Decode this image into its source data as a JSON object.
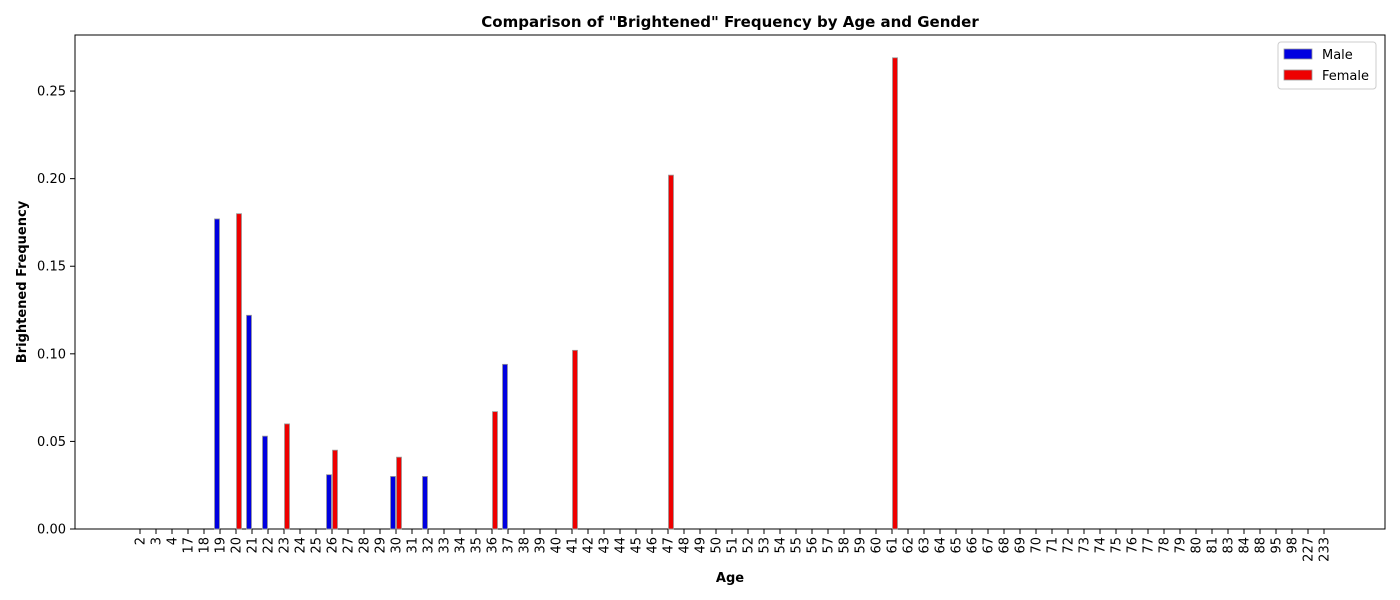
{
  "chart_data": {
    "type": "bar",
    "title": "Comparison of \"Brightened\" Frequency by Age and Gender",
    "xlabel": "Age",
    "ylabel": "Brightened Frequency",
    "ylim": [
      0,
      0.282
    ],
    "yticks": [
      0.0,
      0.05,
      0.1,
      0.15,
      0.2,
      0.25
    ],
    "ytick_labels": [
      "0.00",
      "0.05",
      "0.10",
      "0.15",
      "0.20",
      "0.25"
    ],
    "legend_position": "top-right",
    "categories": [
      "2",
      "3",
      "4",
      "17",
      "18",
      "19",
      "20",
      "21",
      "22",
      "23",
      "24",
      "25",
      "26",
      "27",
      "28",
      "29",
      "30",
      "31",
      "32",
      "33",
      "34",
      "35",
      "36",
      "37",
      "38",
      "39",
      "40",
      "41",
      "42",
      "43",
      "44",
      "45",
      "46",
      "47",
      "48",
      "49",
      "50",
      "51",
      "52",
      "53",
      "54",
      "55",
      "56",
      "57",
      "58",
      "59",
      "60",
      "61",
      "62",
      "63",
      "64",
      "65",
      "66",
      "67",
      "68",
      "69",
      "70",
      "71",
      "72",
      "73",
      "74",
      "75",
      "76",
      "77",
      "78",
      "79",
      "80",
      "81",
      "83",
      "84",
      "88",
      "95",
      "98",
      "227",
      "233"
    ],
    "series": [
      {
        "name": "Male",
        "color": "#0000e0",
        "values": [
          0,
          0,
          0,
          0,
          0,
          0.177,
          0,
          0.122,
          0.053,
          0,
          0,
          0,
          0.031,
          0,
          0,
          0,
          0.03,
          0,
          0.03,
          0,
          0,
          0,
          0,
          0.094,
          0,
          0,
          0,
          0,
          0,
          0,
          0,
          0,
          0,
          0,
          0,
          0,
          0,
          0,
          0,
          0,
          0,
          0,
          0,
          0,
          0,
          0,
          0,
          0,
          0,
          0,
          0,
          0,
          0,
          0,
          0,
          0,
          0,
          0,
          0,
          0,
          0,
          0,
          0,
          0,
          0,
          0,
          0,
          0,
          0,
          0,
          0,
          0,
          0,
          0,
          0
        ]
      },
      {
        "name": "Female",
        "color": "#ee0000",
        "values": [
          0,
          0,
          0,
          0,
          0,
          0,
          0.18,
          0,
          0,
          0.06,
          0,
          0,
          0.045,
          0,
          0,
          0,
          0.041,
          0,
          0,
          0,
          0,
          0,
          0.067,
          0,
          0,
          0,
          0,
          0.102,
          0,
          0,
          0,
          0,
          0,
          0.202,
          0,
          0,
          0,
          0,
          0,
          0,
          0,
          0,
          0,
          0,
          0,
          0,
          0,
          0.269,
          0,
          0,
          0,
          0,
          0,
          0,
          0,
          0,
          0,
          0,
          0,
          0,
          0,
          0,
          0,
          0,
          0,
          0,
          0,
          0,
          0,
          0,
          0,
          0,
          0,
          0,
          0
        ]
      }
    ]
  }
}
